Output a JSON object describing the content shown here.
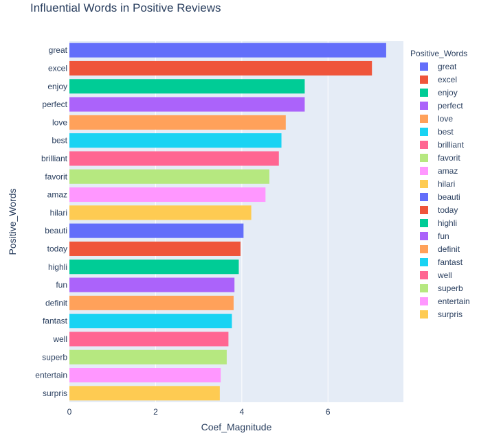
{
  "chart_data": {
    "type": "bar",
    "orientation": "horizontal",
    "title": "Influential Words in Positive Reviews",
    "xlabel": "Coef_Magnitude",
    "ylabel": "Positive_Words",
    "xlim": [
      0,
      7.75
    ],
    "xticks": [
      0,
      2,
      4,
      6
    ],
    "grid": true,
    "legend_title": "Positive_Words",
    "legend_position": "right",
    "categories": [
      "great",
      "excel",
      "enjoy",
      "perfect",
      "love",
      "best",
      "brilliant",
      "favorit",
      "amaz",
      "hilari",
      "beauti",
      "today",
      "highli",
      "fun",
      "definit",
      "fantast",
      "well",
      "superb",
      "entertain",
      "surpris"
    ],
    "values": [
      7.35,
      7.02,
      5.46,
      5.46,
      5.02,
      4.92,
      4.86,
      4.64,
      4.55,
      4.22,
      4.04,
      3.97,
      3.93,
      3.83,
      3.81,
      3.77,
      3.69,
      3.65,
      3.51,
      3.49
    ],
    "colors": [
      "#636efa",
      "#EF553B",
      "#00cc96",
      "#ab63fa",
      "#FFA15A",
      "#19d3f3",
      "#FF6692",
      "#B6E880",
      "#FF97FF",
      "#FECB52",
      "#636efa",
      "#EF553B",
      "#00cc96",
      "#ab63fa",
      "#FFA15A",
      "#19d3f3",
      "#FF6692",
      "#B6E880",
      "#FF97FF",
      "#FECB52"
    ],
    "plot_background": "#e5ecf6"
  }
}
